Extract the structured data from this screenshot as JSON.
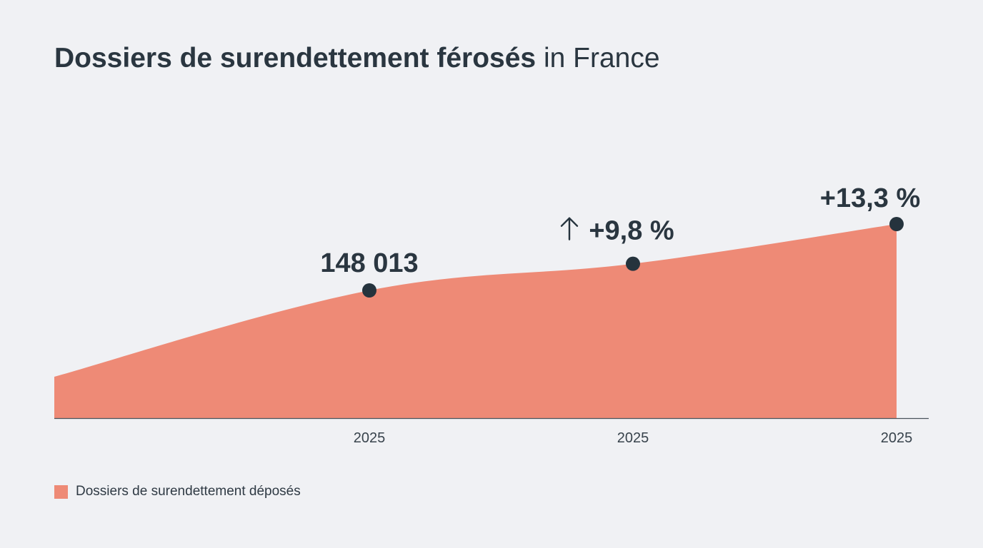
{
  "title": {
    "bold": "Dossiers de surendettement férosés",
    "normal": "in France"
  },
  "colors": {
    "background": "#f0f1f4",
    "area": "#ee8a76",
    "marker": "#25333d",
    "text": "#2a3640",
    "axis": "#4a545c"
  },
  "chart_data": {
    "type": "area",
    "title": "Dossiers de surendettement férosés in France",
    "xlabel": "",
    "ylabel": "",
    "grid": false,
    "legend_position": "bottom-left",
    "x_ticks": [
      "2025",
      "2025",
      "2025"
    ],
    "series": [
      {
        "name": "Dossiers de surendettement déposés",
        "color": "#ee8a76",
        "values": [
          101000,
          148013,
          162518,
          184133
        ],
        "annotations": [
          "",
          "148 013",
          "+9,8 %",
          "+13,3 %"
        ],
        "arrow_up_on": [
          2
        ]
      }
    ]
  },
  "legend": {
    "label": "Dossiers de surendettement déposés"
  }
}
